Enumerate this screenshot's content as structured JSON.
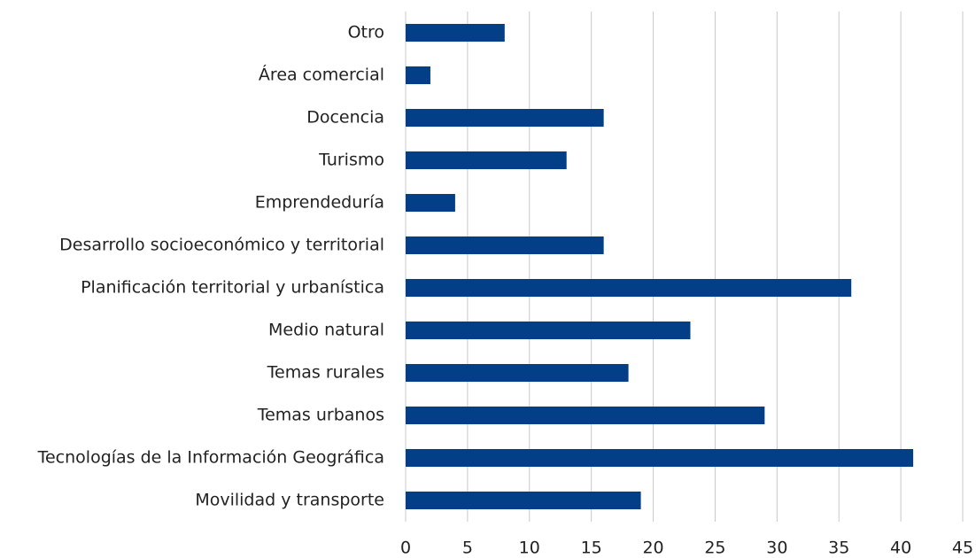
{
  "chart_data": {
    "type": "barh",
    "categories": [
      "Otro",
      "Área comercial",
      "Docencia",
      "Turismo",
      "Emprendeduría",
      "Desarrollo socioeconómico y territorial",
      "Planificación territorial y urbanística",
      "Medio natural",
      "Temas rurales",
      "Temas urbanos",
      "Tecnologías de la Información Geográfica",
      "Movilidad y transporte"
    ],
    "values": [
      8,
      2,
      16,
      13,
      4,
      16,
      36,
      23,
      18,
      29,
      41,
      19
    ],
    "color": "#023f87",
    "xlim": [
      0,
      45
    ],
    "xticks": [
      0,
      5,
      10,
      15,
      20,
      25,
      30,
      35,
      40,
      45
    ],
    "grid": true
  }
}
